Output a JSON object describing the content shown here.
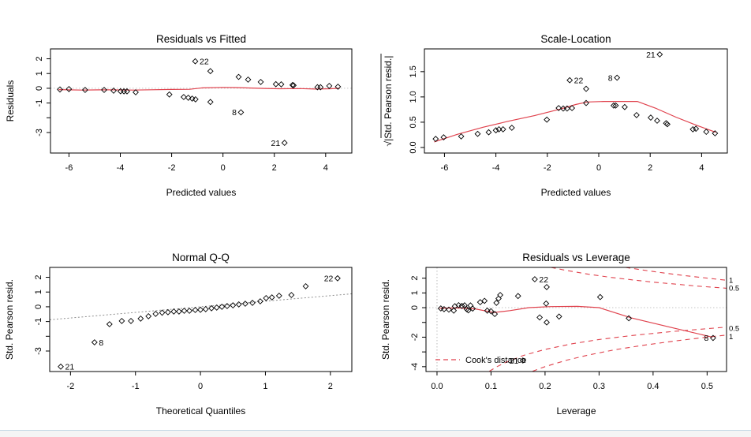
{
  "page": {
    "kind": "R regression diagnostic plots pane",
    "background": "#ffffff",
    "bottom_bar_border": "#c2d6e4",
    "bottom_bar_fill": "#f4f4f4"
  },
  "palette": {
    "point": "#000000",
    "red_line": "#e0424d",
    "pink_label": "#f08d96",
    "ref_gray": "#c6c6c6",
    "qq_gray": "#8f8f8f",
    "frame": "#000000"
  },
  "chart_data": [
    {
      "id": "p1",
      "type": "scatter",
      "title": "Residuals vs Fitted",
      "xlabel": "Predicted values",
      "ylabel": "Residuals",
      "xlim": [
        -6.72,
        5.02
      ],
      "ylim": [
        -4.39,
        2.67
      ],
      "grid": false,
      "xticks": [
        {
          "v": -6,
          "label": "-6"
        },
        {
          "v": -4,
          "label": "-4"
        },
        {
          "v": -2,
          "label": "-2"
        },
        {
          "v": 0,
          "label": "0"
        },
        {
          "v": 2,
          "label": "2"
        },
        {
          "v": 4,
          "label": "4"
        }
      ],
      "yticks": [
        {
          "v": 2,
          "label": "2"
        },
        {
          "v": 1,
          "label": "1"
        },
        {
          "v": 0,
          "label": "0"
        },
        {
          "v": -1,
          "label": "-1"
        },
        {
          "v": -2,
          "label": ""
        },
        {
          "v": -3,
          "label": "-3"
        }
      ],
      "ref_h": [
        0
      ],
      "smooth": [
        [
          -6.4,
          -0.09
        ],
        [
          -5.5,
          -0.12
        ],
        [
          -4.5,
          -0.1
        ],
        [
          -3.5,
          -0.12
        ],
        [
          -2.8,
          -0.1
        ],
        [
          -2.0,
          -0.08
        ],
        [
          -1.3,
          -0.07
        ],
        [
          -0.8,
          0.03
        ],
        [
          0.0,
          0.06
        ],
        [
          0.5,
          0.05
        ],
        [
          1.0,
          0.02
        ],
        [
          1.6,
          -0.01
        ],
        [
          2.2,
          -0.03
        ],
        [
          3.0,
          -0.02
        ],
        [
          3.6,
          -0.05
        ],
        [
          4.2,
          -0.03
        ],
        [
          4.55,
          0.0
        ]
      ],
      "points": [
        [
          -6.35,
          -0.08
        ],
        [
          -6.0,
          -0.05
        ],
        [
          -5.37,
          -0.11
        ],
        [
          -4.63,
          -0.11
        ],
        [
          -4.26,
          -0.16
        ],
        [
          -3.99,
          -0.2
        ],
        [
          -3.86,
          -0.21
        ],
        [
          -3.74,
          -0.21
        ],
        [
          -3.4,
          -0.27
        ],
        [
          -2.09,
          -0.42
        ],
        [
          -1.53,
          -0.59
        ],
        [
          -1.35,
          -0.64
        ],
        [
          -1.2,
          -0.7
        ],
        [
          -1.07,
          -0.75
        ],
        [
          -0.49,
          1.16
        ],
        [
          -0.49,
          -0.93
        ],
        [
          0.61,
          0.77
        ],
        [
          0.98,
          0.59
        ],
        [
          1.47,
          0.43
        ],
        [
          2.06,
          0.28
        ],
        [
          2.27,
          0.27
        ],
        [
          2.71,
          0.22
        ],
        [
          2.75,
          0.2
        ],
        [
          3.68,
          0.07
        ],
        [
          3.8,
          0.07
        ],
        [
          4.14,
          0.16
        ],
        [
          4.48,
          0.11
        ]
      ],
      "labeled_points": [
        {
          "x": -1.08,
          "y": 1.83,
          "label": "22",
          "side": "right"
        },
        {
          "x": 0.7,
          "y": -1.63,
          "label": "8",
          "side": "left"
        },
        {
          "x": 2.4,
          "y": -3.7,
          "label": "21",
          "side": "left"
        }
      ]
    },
    {
      "id": "p2",
      "type": "scatter",
      "title": "Scale-Location",
      "xlabel": "Predicted values",
      "ylabel": "√|Std. Pearson resid.|",
      "ylabel_overline": true,
      "xlim": [
        -6.78,
        5.0
      ],
      "ylim": [
        -0.11,
        1.95
      ],
      "grid": false,
      "xticks": [
        {
          "v": -6,
          "label": "-6"
        },
        {
          "v": -4,
          "label": "-4"
        },
        {
          "v": -2,
          "label": "-2"
        },
        {
          "v": 0,
          "label": "0"
        },
        {
          "v": 2,
          "label": "2"
        },
        {
          "v": 4,
          "label": "4"
        }
      ],
      "yticks": [
        {
          "v": 1.5,
          "label": "1.5"
        },
        {
          "v": 1.0,
          "label": "1.0"
        },
        {
          "v": 0.5,
          "label": "0.5"
        },
        {
          "v": 0.0,
          "label": "0.0"
        }
      ],
      "smooth": [
        [
          -6.4,
          0.11
        ],
        [
          -5.5,
          0.26
        ],
        [
          -4.5,
          0.4
        ],
        [
          -3.5,
          0.52
        ],
        [
          -2.5,
          0.63
        ],
        [
          -1.5,
          0.76
        ],
        [
          -0.9,
          0.85
        ],
        [
          -0.45,
          0.9
        ],
        [
          0.2,
          0.91
        ],
        [
          1.0,
          0.91
        ],
        [
          1.5,
          0.91
        ],
        [
          2.2,
          0.78
        ],
        [
          3.0,
          0.6
        ],
        [
          3.8,
          0.44
        ],
        [
          4.55,
          0.3
        ]
      ],
      "points": [
        [
          -6.34,
          0.17
        ],
        [
          -6.03,
          0.2
        ],
        [
          -5.35,
          0.22
        ],
        [
          -4.71,
          0.27
        ],
        [
          -4.28,
          0.3
        ],
        [
          -4.0,
          0.34
        ],
        [
          -3.88,
          0.36
        ],
        [
          -3.72,
          0.36
        ],
        [
          -3.38,
          0.39
        ],
        [
          -2.02,
          0.55
        ],
        [
          -1.56,
          0.78
        ],
        [
          -1.38,
          0.77
        ],
        [
          -1.23,
          0.77
        ],
        [
          -1.04,
          0.78
        ],
        [
          -0.49,
          1.16
        ],
        [
          -0.49,
          0.88
        ],
        [
          0.58,
          0.83
        ],
        [
          0.66,
          0.83
        ],
        [
          1.01,
          0.8
        ],
        [
          1.47,
          0.64
        ],
        [
          2.02,
          0.59
        ],
        [
          2.27,
          0.53
        ],
        [
          2.62,
          0.48
        ],
        [
          2.67,
          0.46
        ],
        [
          3.66,
          0.36
        ],
        [
          3.78,
          0.37
        ],
        [
          4.18,
          0.31
        ],
        [
          4.52,
          0.28
        ]
      ],
      "labeled_points": [
        {
          "x": -1.13,
          "y": 1.33,
          "label": "22",
          "side": "right"
        },
        {
          "x": 0.71,
          "y": 1.38,
          "label": "8",
          "side": "left"
        },
        {
          "x": 2.37,
          "y": 1.84,
          "label": "21",
          "side": "left"
        }
      ]
    },
    {
      "id": "p3",
      "type": "scatter",
      "title": "Normal Q-Q",
      "xlabel": "Theoretical Quantiles",
      "ylabel": "Std. Pearson resid.",
      "xlim": [
        -2.32,
        2.33
      ],
      "ylim": [
        -4.39,
        2.67
      ],
      "grid": false,
      "xticks": [
        {
          "v": -2,
          "label": "-2"
        },
        {
          "v": -1,
          "label": "-1"
        },
        {
          "v": 0,
          "label": "0"
        },
        {
          "v": 1,
          "label": "1"
        },
        {
          "v": 2,
          "label": "2"
        }
      ],
      "yticks": [
        {
          "v": 2,
          "label": "2"
        },
        {
          "v": 1,
          "label": "1"
        },
        {
          "v": 0,
          "label": "0"
        },
        {
          "v": -1,
          "label": "-1"
        },
        {
          "v": -2,
          "label": ""
        },
        {
          "v": -3,
          "label": "-3"
        }
      ],
      "qq_line": {
        "x1": -2.32,
        "y1": -0.88,
        "x2": 2.33,
        "y2": 0.88
      },
      "points": [
        [
          -1.4,
          -1.18
        ],
        [
          -1.21,
          -0.96
        ],
        [
          -1.07,
          -0.96
        ],
        [
          -0.92,
          -0.8
        ],
        [
          -0.8,
          -0.64
        ],
        [
          -0.69,
          -0.48
        ],
        [
          -0.59,
          -0.4
        ],
        [
          -0.5,
          -0.37
        ],
        [
          -0.41,
          -0.32
        ],
        [
          -0.33,
          -0.32
        ],
        [
          -0.25,
          -0.27
        ],
        [
          -0.17,
          -0.27
        ],
        [
          -0.08,
          -0.22
        ],
        [
          0.0,
          -0.2
        ],
        [
          0.08,
          -0.16
        ],
        [
          0.17,
          -0.1
        ],
        [
          0.25,
          -0.05
        ],
        [
          0.33,
          0.0
        ],
        [
          0.41,
          0.05
        ],
        [
          0.5,
          0.1
        ],
        [
          0.59,
          0.16
        ],
        [
          0.69,
          0.21
        ],
        [
          0.8,
          0.27
        ],
        [
          0.92,
          0.37
        ],
        [
          1.01,
          0.59
        ],
        [
          1.1,
          0.64
        ],
        [
          1.21,
          0.75
        ],
        [
          1.4,
          0.8
        ],
        [
          1.62,
          1.39
        ]
      ],
      "labeled_points": [
        {
          "x": -2.15,
          "y": -4.06,
          "label": "21",
          "side": "right"
        },
        {
          "x": -1.63,
          "y": -2.41,
          "label": "8",
          "side": "right"
        },
        {
          "x": 2.11,
          "y": 1.93,
          "label": "22",
          "side": "left"
        }
      ]
    },
    {
      "id": "p4",
      "type": "scatter",
      "title": "Residuals vs Leverage",
      "xlabel": "Leverage",
      "ylabel": "Std. Pearson resid.",
      "xlim": [
        -0.0204,
        0.536
      ],
      "ylim": [
        -4.33,
        2.73
      ],
      "grid": false,
      "xticks": [
        {
          "v": 0.0,
          "label": "0.0"
        },
        {
          "v": 0.1,
          "label": "0.1"
        },
        {
          "v": 0.2,
          "label": "0.2"
        },
        {
          "v": 0.3,
          "label": "0.3"
        },
        {
          "v": 0.4,
          "label": "0.4"
        },
        {
          "v": 0.5,
          "label": "0.5"
        }
      ],
      "yticks": [
        {
          "v": 2,
          "label": "2"
        },
        {
          "v": 1,
          "label": "1"
        },
        {
          "v": 0,
          "label": "0"
        },
        {
          "v": -1,
          "label": ""
        },
        {
          "v": -2,
          "label": "-2"
        },
        {
          "v": -3,
          "label": ""
        },
        {
          "v": -4,
          "label": "-4"
        }
      ],
      "ref_h": [
        0
      ],
      "ref_v": [
        0
      ],
      "smooth": [
        [
          0.005,
          -0.03
        ],
        [
          0.04,
          -0.02
        ],
        [
          0.07,
          -0.08
        ],
        [
          0.105,
          -0.33
        ],
        [
          0.135,
          -0.2
        ],
        [
          0.17,
          0.0
        ],
        [
          0.21,
          0.07
        ],
        [
          0.26,
          0.09
        ],
        [
          0.3,
          0.0
        ],
        [
          0.36,
          -0.7
        ],
        [
          0.44,
          -1.4
        ],
        [
          0.51,
          -2.0
        ]
      ],
      "points": [
        [
          0.007,
          -0.05
        ],
        [
          0.013,
          -0.1
        ],
        [
          0.022,
          -0.13
        ],
        [
          0.031,
          -0.2
        ],
        [
          0.033,
          0.1
        ],
        [
          0.04,
          0.17
        ],
        [
          0.046,
          0.12
        ],
        [
          0.051,
          0.16
        ],
        [
          0.055,
          -0.1
        ],
        [
          0.058,
          -0.18
        ],
        [
          0.062,
          0.15
        ],
        [
          0.066,
          -0.06
        ],
        [
          0.08,
          0.37
        ],
        [
          0.088,
          0.46
        ],
        [
          0.093,
          -0.2
        ],
        [
          0.1,
          -0.24
        ],
        [
          0.107,
          -0.43
        ],
        [
          0.11,
          0.33
        ],
        [
          0.114,
          0.62
        ],
        [
          0.117,
          0.86
        ],
        [
          0.15,
          0.79
        ],
        [
          0.203,
          1.4
        ],
        [
          0.202,
          0.28
        ],
        [
          0.19,
          -0.66
        ],
        [
          0.203,
          -1.0
        ],
        [
          0.226,
          -0.6
        ],
        [
          0.302,
          0.72
        ],
        [
          0.355,
          -0.72
        ]
      ],
      "labeled_points": [
        {
          "x": 0.181,
          "y": 1.93,
          "label": "22",
          "side": "right"
        },
        {
          "x": 0.511,
          "y": -2.05,
          "label": "8",
          "side": "left"
        },
        {
          "x": 0.159,
          "y": -3.58,
          "label": "21",
          "side": "left"
        }
      ],
      "contours": [
        {
          "level": 0.5,
          "branch": "upper",
          "pts": [
            [
              0.211,
              2.73
            ],
            [
              0.24,
              2.52
            ],
            [
              0.28,
              2.27
            ],
            [
              0.32,
              2.06
            ],
            [
              0.36,
              1.89
            ],
            [
              0.4,
              1.73
            ],
            [
              0.44,
              1.6
            ],
            [
              0.48,
              1.47
            ],
            [
              0.536,
              1.32
            ]
          ]
        },
        {
          "level": 1,
          "branch": "upper",
          "pts": [
            [
              0.349,
              2.73
            ],
            [
              0.38,
              2.56
            ],
            [
              0.42,
              2.35
            ],
            [
              0.46,
              2.17
            ],
            [
              0.5,
              2.0
            ],
            [
              0.536,
              1.86
            ]
          ]
        },
        {
          "level": 0.5,
          "branch": "lower",
          "pts": [
            [
              0.097,
              -4.31
            ],
            [
              0.11,
              -4.02
            ],
            [
              0.13,
              -3.66
            ],
            [
              0.16,
              -3.24
            ],
            [
              0.2,
              -2.83
            ],
            [
              0.25,
              -2.45
            ],
            [
              0.3,
              -2.16
            ],
            [
              0.36,
              -1.89
            ],
            [
              0.44,
              -1.6
            ],
            [
              0.536,
              -1.32
            ]
          ]
        },
        {
          "level": 1,
          "branch": "lower",
          "pts": [
            [
              0.177,
              -4.31
            ],
            [
              0.2,
              -4.0
            ],
            [
              0.24,
              -3.56
            ],
            [
              0.28,
              -3.21
            ],
            [
              0.33,
              -2.85
            ],
            [
              0.38,
              -2.56
            ],
            [
              0.44,
              -2.26
            ],
            [
              0.5,
              -2.0
            ],
            [
              0.536,
              -1.86
            ]
          ]
        }
      ],
      "contour_labels": [
        {
          "text": "1",
          "v": 1.86
        },
        {
          "text": "0.5",
          "v": 1.32
        },
        {
          "text": "0.5",
          "v": -1.42
        },
        {
          "text": "1",
          "v": -1.97
        }
      ],
      "legend": {
        "label": "Cook's distance"
      }
    }
  ]
}
